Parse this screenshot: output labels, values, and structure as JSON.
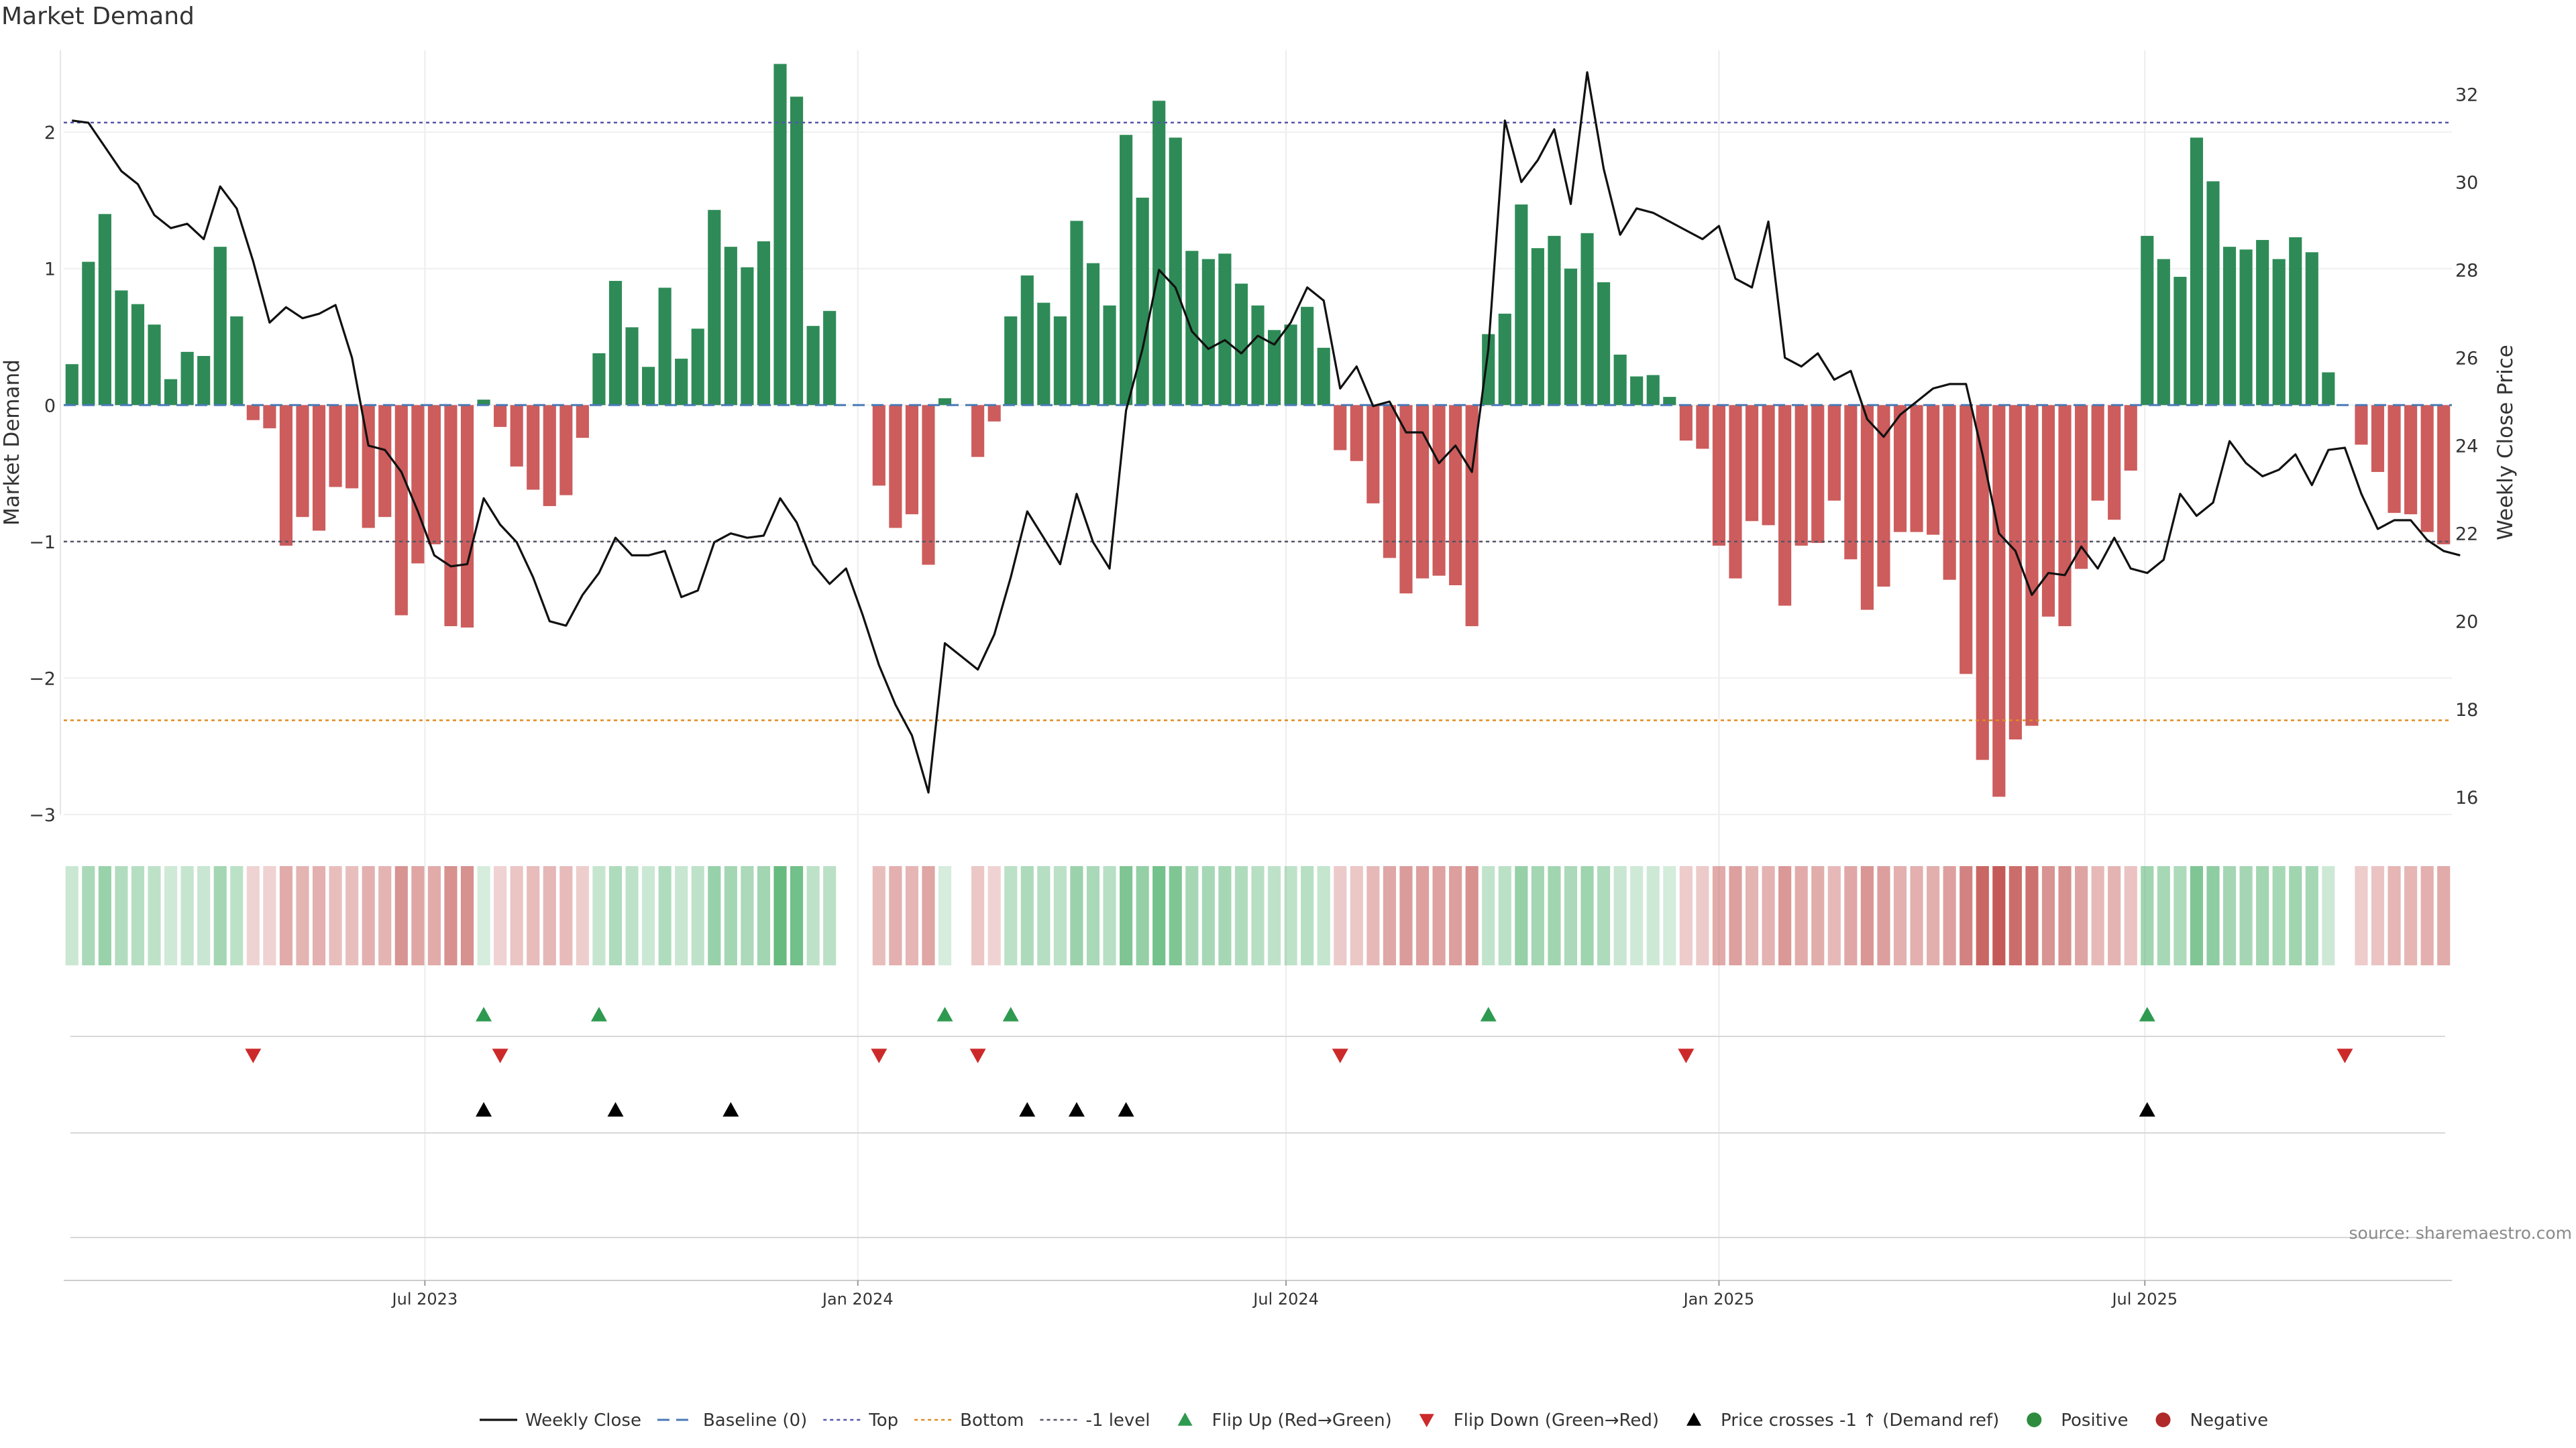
{
  "title": "Market Demand",
  "source": "source: sharemaestro.com",
  "chart_data": {
    "type": "bar",
    "bar_dates_start": "2023-02-01",
    "bar_interval_days": 7,
    "left_axis": {
      "label": "Market Demand",
      "ylim": [
        -3,
        2.6
      ],
      "ticks": [
        2,
        1,
        0,
        -1,
        -2,
        -3
      ],
      "tick_labels": [
        "2",
        "1",
        "0",
        "−1",
        "−2",
        "−3"
      ]
    },
    "right_axis": {
      "label": "Weekly Close Price",
      "ylim": [
        15.6,
        33
      ],
      "ticks": [
        32,
        30,
        28,
        26,
        24,
        22,
        20,
        18,
        16
      ],
      "tick_labels": [
        "32",
        "30",
        "28",
        "26",
        "24",
        "22",
        "20",
        "18",
        "16"
      ]
    },
    "x_ticks": [
      {
        "label": "Jul 2023",
        "date": "2023-07-01"
      },
      {
        "label": "Jan 2024",
        "date": "2024-01-01"
      },
      {
        "label": "Jul 2024",
        "date": "2024-07-01"
      },
      {
        "label": "Jan 2025",
        "date": "2025-01-01"
      },
      {
        "label": "Jul 2025",
        "date": "2025-07-01"
      }
    ],
    "reference_lines": {
      "top": 2.07,
      "bottom": -2.31,
      "minus_one": -1,
      "baseline": 0
    },
    "demand": [
      0.3,
      1.05,
      1.4,
      0.84,
      0.74,
      0.59,
      0.19,
      0.39,
      0.36,
      1.16,
      0.65,
      -0.11,
      -0.17,
      -1.03,
      -0.82,
      -0.92,
      -0.6,
      -0.61,
      -0.9,
      -0.82,
      -1.54,
      -1.16,
      -1.02,
      -1.62,
      -1.63,
      0.04,
      -0.16,
      -0.45,
      -0.62,
      -0.74,
      -0.66,
      -0.24,
      0.38,
      0.91,
      0.57,
      0.28,
      0.86,
      0.34,
      0.56,
      1.43,
      1.16,
      1.01,
      1.2,
      2.5,
      2.26,
      0.58,
      0.69,
      0,
      0,
      -0.59,
      -0.9,
      -0.8,
      -1.17,
      0.05,
      0,
      -0.38,
      -0.12,
      0.65,
      0.95,
      0.75,
      0.65,
      1.35,
      1.04,
      0.73,
      1.98,
      1.52,
      2.23,
      1.96,
      1.13,
      1.07,
      1.11,
      0.89,
      0.73,
      0.55,
      0.59,
      0.72,
      0.42,
      -0.33,
      -0.41,
      -0.72,
      -1.12,
      -1.38,
      -1.27,
      -1.25,
      -1.32,
      -1.62,
      0.52,
      0.67,
      1.47,
      1.15,
      1.24,
      1.0,
      1.26,
      0.9,
      0.37,
      0.21,
      0.22,
      0.06,
      -0.26,
      -0.32,
      -1.03,
      -1.27,
      -0.85,
      -0.88,
      -1.47,
      -1.03,
      -1.01,
      -0.7,
      -1.13,
      -1.5,
      -1.33,
      -0.93,
      -0.93,
      -0.95,
      -1.28,
      -1.97,
      -2.6,
      -2.87,
      -2.45,
      -2.35,
      -1.55,
      -1.62,
      -1.2,
      -0.7,
      -0.84,
      -0.48,
      1.24,
      1.07,
      0.94,
      1.96,
      1.64,
      1.16,
      1.14,
      1.21,
      1.07,
      1.23,
      1.12,
      0.24,
      0,
      -0.29,
      -0.49,
      -0.79,
      -0.8,
      -0.93,
      -1.02
    ],
    "weekly_close": [
      31.4,
      31.35,
      30.8,
      30.25,
      29.95,
      29.25,
      28.95,
      29.05,
      28.7,
      29.9,
      29.4,
      28.2,
      26.8,
      27.15,
      26.9,
      27.0,
      27.2,
      26.0,
      24.0,
      23.9,
      23.4,
      22.5,
      21.5,
      21.25,
      21.3,
      22.8,
      22.2,
      21.8,
      21.0,
      20.0,
      19.9,
      20.6,
      21.1,
      21.9,
      21.5,
      21.5,
      21.6,
      20.55,
      20.7,
      21.8,
      22.0,
      21.9,
      21.95,
      22.8,
      22.25,
      21.3,
      20.85,
      21.2,
      20.15,
      19.0,
      18.1,
      17.4,
      16.1,
      19.5,
      19.2,
      18.9,
      19.7,
      21.0,
      22.5,
      21.9,
      21.3,
      22.9,
      21.8,
      21.2,
      24.8,
      26.2,
      28.0,
      27.6,
      26.6,
      26.2,
      26.4,
      26.1,
      26.5,
      26.3,
      26.8,
      27.6,
      27.3,
      25.3,
      25.8,
      24.9,
      25.0,
      24.3,
      24.3,
      23.6,
      24.0,
      23.4,
      26.2,
      31.4,
      30.0,
      30.5,
      31.2,
      29.5,
      32.5,
      30.3,
      28.8,
      29.4,
      29.3,
      29.1,
      28.9,
      28.7,
      29.0,
      27.8,
      27.6,
      29.1,
      26.0,
      25.8,
      26.1,
      25.5,
      25.7,
      24.6,
      24.2,
      24.7,
      25.0,
      25.3,
      25.4,
      25.4,
      23.8,
      22.0,
      21.6,
      20.6,
      21.1,
      21.05,
      21.7,
      21.2,
      21.9,
      21.2,
      21.1,
      21.4,
      22.9,
      22.4,
      22.7,
      24.1,
      23.6,
      23.3,
      23.45,
      23.8,
      23.1,
      23.9,
      23.95,
      22.9,
      22.1,
      22.3,
      22.3,
      21.85,
      21.6,
      21.5
    ],
    "series": [
      {
        "name": "Weekly Close",
        "color": "#111111"
      },
      {
        "name": "Baseline (0)",
        "color": "#4a7ab5"
      },
      {
        "name": "Top",
        "color": "#5555aa"
      },
      {
        "name": "Bottom",
        "color": "#e08a20"
      },
      {
        "name": "-1 level",
        "color": "#555566"
      },
      {
        "name": "Flip Up (Red→Green)",
        "color": "#2e9a50"
      },
      {
        "name": "Flip Down (Green→Red)",
        "color": "#cc2a2a"
      },
      {
        "name": "Price crosses -1 ↑ (Demand ref)",
        "color": "#000000"
      },
      {
        "name": "Positive",
        "color": "#2e8b3e"
      },
      {
        "name": "Negative",
        "color": "#b02a2a"
      }
    ],
    "flip_up_indices": [
      25,
      32,
      53,
      57,
      86,
      126
    ],
    "flip_down_indices": [
      11,
      26,
      49,
      55,
      77,
      98,
      138
    ],
    "price_cross_indices": [
      25,
      33,
      40,
      58,
      61,
      64,
      126
    ],
    "colors": {
      "positive": "#2e8b57",
      "negative": "#cd5c5c"
    }
  }
}
